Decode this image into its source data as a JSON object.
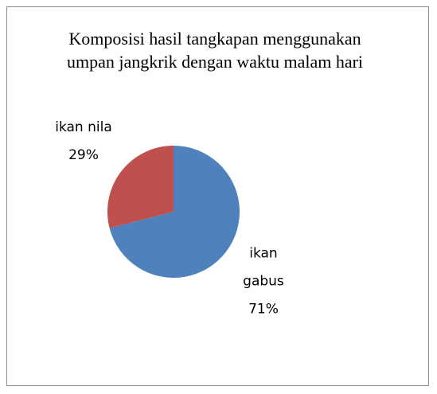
{
  "chart_data": {
    "type": "pie",
    "title": "Komposisi hasil tangkapan menggunakan umpan jangkrik dengan waktu malam hari",
    "categories": [
      "ikan gabus",
      "ikan nila"
    ],
    "values": [
      71,
      29
    ],
    "value_labels": [
      "71%",
      "29%"
    ],
    "colors": [
      "#4f81bd",
      "#c0504d"
    ]
  }
}
